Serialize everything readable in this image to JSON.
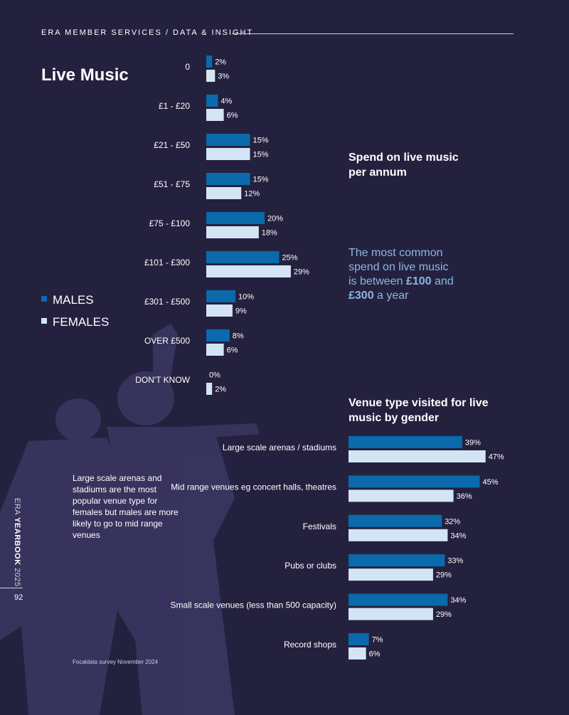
{
  "header": {
    "section": "ERA MEMBER SERVICES / DATA & INSIGHT",
    "title": "Live Music"
  },
  "legend": {
    "males": "MALES",
    "females": "FEMALES"
  },
  "colors": {
    "males": "#0a6aab",
    "females": "#d3e5f5",
    "background": "#24213f",
    "accent_text": "#8ab8df"
  },
  "spend_section": {
    "title_line1": "Spend on live music",
    "title_line2": "per annum",
    "callout_line1": "The most common",
    "callout_line2": "spend on live music",
    "callout_line3_pre": "is between ",
    "callout_amount1": "£100",
    "callout_mid": " and",
    "callout_amount2": "£300",
    "callout_post": " a year"
  },
  "venue_section": {
    "title_line1": "Venue type visited for live",
    "title_line2": "music by gender"
  },
  "note": "Large scale arenas and stadiums are the most popular venue type for females but males are more likely to go to mid range venues",
  "source": "Focaldata survey November 2024",
  "sidebar": {
    "prefix": "ERA ",
    "bold": "YEARBOOK",
    "suffix": " 2025",
    "page": "92"
  },
  "chart_data": [
    {
      "type": "bar",
      "orientation": "horizontal",
      "title": "Spend on live music per annum",
      "categories": [
        "0",
        "£1 - £20",
        "£21 - £50",
        "£51 - £75",
        "£75 - £100",
        "£101 - £300",
        "£301 - £500",
        "OVER £500",
        "DON'T KNOW"
      ],
      "series": [
        {
          "name": "MALES",
          "values": [
            2,
            4,
            15,
            15,
            20,
            25,
            10,
            8,
            0
          ]
        },
        {
          "name": "FEMALES",
          "values": [
            3,
            6,
            15,
            12,
            18,
            29,
            9,
            6,
            2
          ]
        }
      ],
      "unit": "%",
      "grid": false,
      "legend_position": "left"
    },
    {
      "type": "bar",
      "orientation": "horizontal",
      "title": "Venue type visited for live music by gender",
      "categories": [
        "Large scale arenas / stadiums",
        "Mid range venues eg concert halls, theatres",
        "Festivals",
        "Pubs or clubs",
        "Small scale venues (less than 500 capacity)",
        "Record shops"
      ],
      "series": [
        {
          "name": "MALES",
          "values": [
            39,
            45,
            32,
            33,
            34,
            7
          ]
        },
        {
          "name": "FEMALES",
          "values": [
            47,
            36,
            34,
            29,
            29,
            6
          ]
        }
      ],
      "unit": "%",
      "grid": false,
      "legend_position": "left"
    }
  ]
}
